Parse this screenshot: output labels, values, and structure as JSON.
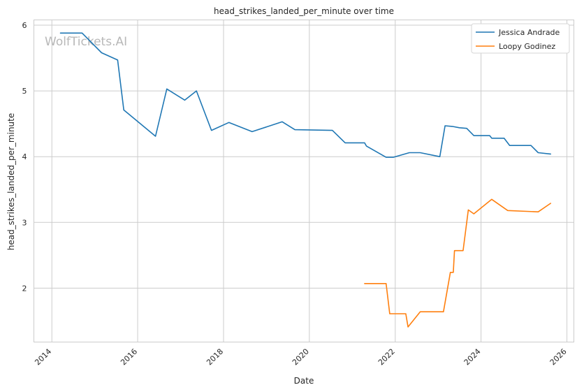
{
  "chart_data": {
    "type": "line",
    "title": "head_strikes_landed_per_minute over time",
    "xlabel": "Date",
    "ylabel": "head_strikes_landed_per_minute",
    "watermark": "WolfTickets.AI",
    "x_ticks": [
      "2014",
      "2016",
      "2018",
      "2020",
      "2022",
      "2024",
      "2026"
    ],
    "y_ticks": [
      "2",
      "3",
      "4",
      "5",
      "6"
    ],
    "xlim": [
      "2013-08-01",
      "2026-03-01"
    ],
    "ylim": [
      1.18,
      6.08
    ],
    "grid": true,
    "legend_position": "top-right",
    "series": [
      {
        "name": "Jessica Andrade",
        "color": "#1f77b4",
        "points": [
          [
            "2014-03-15",
            5.88
          ],
          [
            "2014-09-15",
            5.88
          ],
          [
            "2015-02-28",
            5.58
          ],
          [
            "2015-07-15",
            5.47
          ],
          [
            "2015-09-05",
            4.71
          ],
          [
            "2016-06-01",
            4.31
          ],
          [
            "2016-09-05",
            5.03
          ],
          [
            "2017-02-05",
            4.86
          ],
          [
            "2017-05-15",
            5.0
          ],
          [
            "2017-09-20",
            4.4
          ],
          [
            "2018-02-15",
            4.52
          ],
          [
            "2018-09-01",
            4.38
          ],
          [
            "2019-05-15",
            4.53
          ],
          [
            "2019-08-31",
            4.41
          ],
          [
            "2020-07-15",
            4.4
          ],
          [
            "2020-11-01",
            4.21
          ],
          [
            "2021-04-15",
            4.21
          ],
          [
            "2021-05-01",
            4.16
          ],
          [
            "2021-10-15",
            3.99
          ],
          [
            "2021-12-15",
            3.99
          ],
          [
            "2022-05-01",
            4.06
          ],
          [
            "2022-08-01",
            4.06
          ],
          [
            "2023-01-15",
            4.0
          ],
          [
            "2023-03-01",
            4.47
          ],
          [
            "2023-05-01",
            4.46
          ],
          [
            "2023-07-01",
            4.44
          ],
          [
            "2023-09-01",
            4.43
          ],
          [
            "2023-11-01",
            4.32
          ],
          [
            "2024-03-15",
            4.32
          ],
          [
            "2024-04-01",
            4.28
          ],
          [
            "2024-07-15",
            4.28
          ],
          [
            "2024-09-01",
            4.17
          ],
          [
            "2025-03-01",
            4.17
          ],
          [
            "2025-05-01",
            4.06
          ],
          [
            "2025-08-15",
            4.04
          ]
        ]
      },
      {
        "name": "Loopy Godinez",
        "color": "#ff7f0e",
        "points": [
          [
            "2021-04-15",
            2.07
          ],
          [
            "2021-10-15",
            2.07
          ],
          [
            "2021-11-15",
            1.61
          ],
          [
            "2022-04-01",
            1.61
          ],
          [
            "2022-04-20",
            1.41
          ],
          [
            "2022-08-01",
            1.64
          ],
          [
            "2023-02-15",
            1.64
          ],
          [
            "2023-04-15",
            2.24
          ],
          [
            "2023-05-10",
            2.24
          ],
          [
            "2023-05-20",
            2.57
          ],
          [
            "2023-08-01",
            2.57
          ],
          [
            "2023-09-15",
            3.19
          ],
          [
            "2023-11-01",
            3.13
          ],
          [
            "2024-04-01",
            3.35
          ],
          [
            "2024-08-15",
            3.18
          ],
          [
            "2025-05-01",
            3.16
          ],
          [
            "2025-08-15",
            3.29
          ]
        ]
      }
    ]
  }
}
